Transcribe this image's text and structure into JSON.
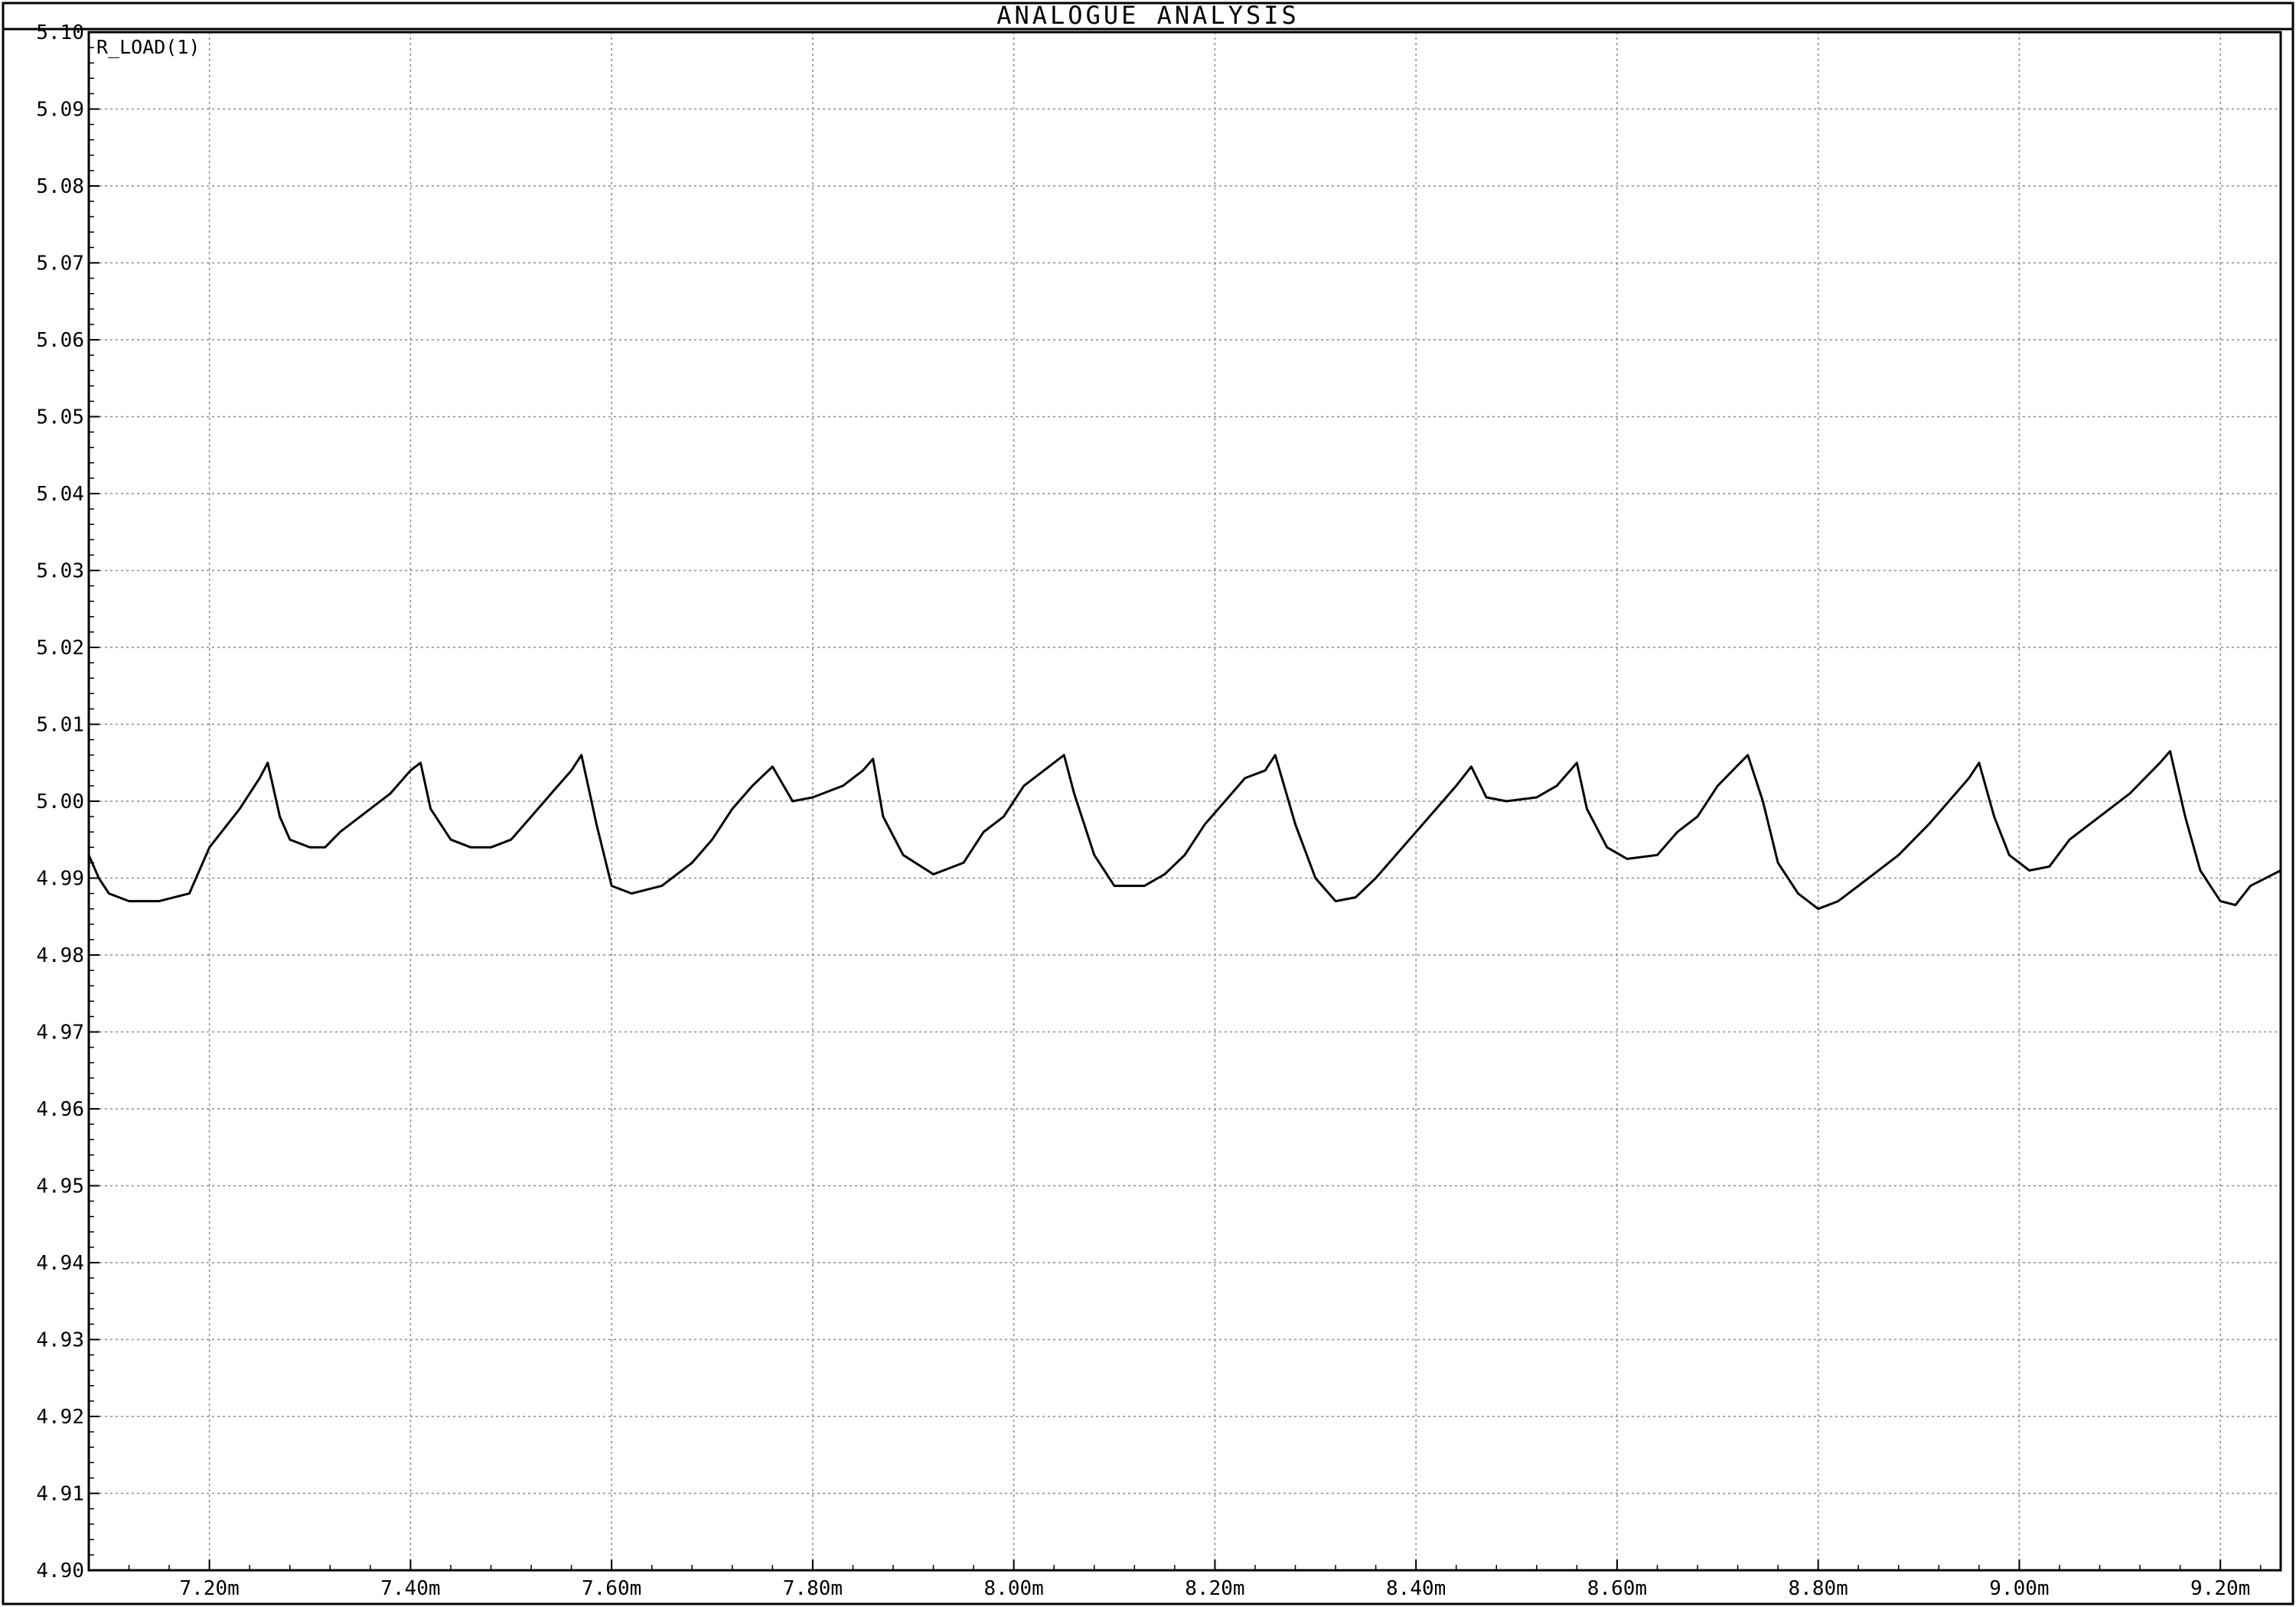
{
  "window": {
    "title": "ANALOGUE ANALYSIS"
  },
  "chart_data": {
    "type": "line",
    "title": "ANALOGUE ANALYSIS",
    "xlabel": "",
    "ylabel": "",
    "xlim": [
      7.08,
      9.26
    ],
    "ylim": [
      4.9,
      5.1
    ],
    "grid": true,
    "x_unit_suffix": "m",
    "x_ticks": [
      7.2,
      7.4,
      7.6,
      7.8,
      8.0,
      8.2,
      8.4,
      8.6,
      8.8,
      9.0,
      9.2
    ],
    "x_tick_labels": [
      "7.20m",
      "7.40m",
      "7.60m",
      "7.80m",
      "8.00m",
      "8.20m",
      "8.40m",
      "8.60m",
      "8.80m",
      "9.00m",
      "9.20m"
    ],
    "y_ticks": [
      5.1,
      5.09,
      5.08,
      5.07,
      5.06,
      5.05,
      5.04,
      5.03,
      5.02,
      5.01,
      5.0,
      4.99,
      4.98,
      4.97,
      4.96,
      4.95,
      4.94,
      4.93,
      4.92,
      4.91,
      4.9
    ],
    "y_tick_labels": [
      "5.10",
      "5.09",
      "5.08",
      "5.07",
      "5.06",
      "5.05",
      "5.04",
      "5.03",
      "5.02",
      "5.01",
      "5.00",
      "4.99",
      "4.98",
      "4.97",
      "4.96",
      "4.95",
      "4.94",
      "4.93",
      "4.92",
      "4.91",
      "4.90"
    ],
    "series": [
      {
        "name": "R_LOAD(1)",
        "color": "#000000",
        "x": [
          7.08,
          7.09,
          7.1,
          7.12,
          7.15,
          7.18,
          7.2,
          7.23,
          7.25,
          7.258,
          7.27,
          7.28,
          7.3,
          7.315,
          7.33,
          7.35,
          7.38,
          7.4,
          7.41,
          7.42,
          7.44,
          7.46,
          7.48,
          7.5,
          7.52,
          7.54,
          7.56,
          7.57,
          7.585,
          7.6,
          7.62,
          7.65,
          7.68,
          7.7,
          7.72,
          7.74,
          7.76,
          7.78,
          7.8,
          7.83,
          7.85,
          7.86,
          7.87,
          7.89,
          7.92,
          7.95,
          7.97,
          7.99,
          8.01,
          8.03,
          8.05,
          8.06,
          8.08,
          8.1,
          8.13,
          8.15,
          8.17,
          8.19,
          8.21,
          8.23,
          8.25,
          8.26,
          8.28,
          8.3,
          8.32,
          8.34,
          8.36,
          8.38,
          8.4,
          8.42,
          8.44,
          8.455,
          8.47,
          8.49,
          8.52,
          8.54,
          8.56,
          8.57,
          8.59,
          8.61,
          8.64,
          8.66,
          8.68,
          8.7,
          8.73,
          8.745,
          8.76,
          8.78,
          8.8,
          8.82,
          8.85,
          8.88,
          8.91,
          8.93,
          8.95,
          8.96,
          8.975,
          8.99,
          9.01,
          9.03,
          9.05,
          9.08,
          9.11,
          9.14,
          9.15,
          9.165,
          9.18,
          9.2,
          9.215,
          9.23,
          9.26
        ],
        "y": [
          4.993,
          4.99,
          4.988,
          4.987,
          4.987,
          4.988,
          4.994,
          4.999,
          5.003,
          5.005,
          4.998,
          4.995,
          4.994,
          4.994,
          4.996,
          4.998,
          5.001,
          5.004,
          5.005,
          4.999,
          4.995,
          4.994,
          4.994,
          4.995,
          4.998,
          5.001,
          5.004,
          5.006,
          4.997,
          4.989,
          4.988,
          4.989,
          4.992,
          4.995,
          4.999,
          5.002,
          5.0045,
          5.0,
          5.0005,
          5.002,
          5.004,
          5.0055,
          4.998,
          4.993,
          4.9905,
          4.992,
          4.996,
          4.998,
          5.002,
          5.004,
          5.006,
          5.001,
          4.993,
          4.989,
          4.989,
          4.9905,
          4.993,
          4.997,
          5.0,
          5.003,
          5.004,
          5.006,
          4.997,
          4.99,
          4.987,
          4.9875,
          4.99,
          4.993,
          4.996,
          4.999,
          5.002,
          5.0045,
          5.0005,
          5.0,
          5.0005,
          5.002,
          5.005,
          4.999,
          4.994,
          4.9925,
          4.993,
          4.996,
          4.998,
          5.002,
          5.006,
          5.0,
          4.992,
          4.988,
          4.986,
          4.987,
          4.99,
          4.993,
          4.997,
          5.0,
          5.003,
          5.005,
          4.998,
          4.993,
          4.991,
          4.9915,
          4.995,
          4.998,
          5.001,
          5.005,
          5.0065,
          4.998,
          4.991,
          4.987,
          4.9865,
          4.989,
          4.991
        ]
      }
    ]
  }
}
